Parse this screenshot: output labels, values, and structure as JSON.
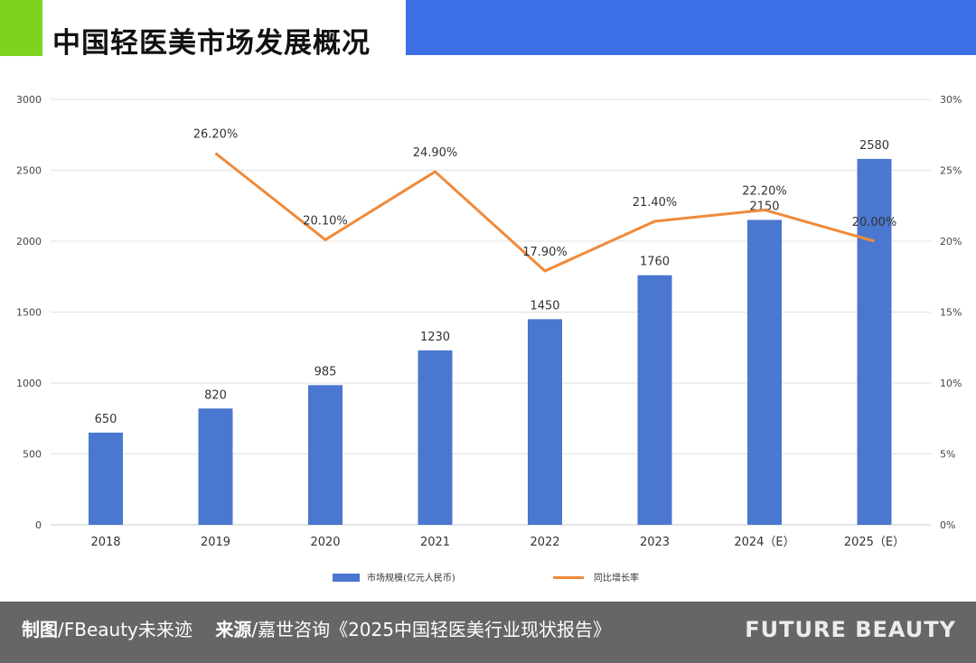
{
  "header": {
    "title": "中国轻医美市场发展概况"
  },
  "chart_data": {
    "type": "bar",
    "categories": [
      "2018",
      "2019",
      "2020",
      "2021",
      "2022",
      "2023",
      "2024（E）",
      "2025（E）"
    ],
    "series": [
      {
        "name": "市场规模(亿元人民币)",
        "type": "bar",
        "axis": "left",
        "color": "#4a77cf",
        "values": [
          650,
          820,
          985,
          1230,
          1450,
          1760,
          2150,
          2580
        ],
        "labels": [
          "650",
          "820",
          "985",
          "1230",
          "1450",
          "1760",
          "2150",
          "2580"
        ]
      },
      {
        "name": "同比增长率",
        "type": "line",
        "axis": "right",
        "color": "#f08a3a",
        "values": [
          null,
          26.2,
          20.1,
          24.9,
          17.9,
          21.4,
          22.2,
          20.0
        ],
        "labels": [
          "",
          "26.20%",
          "20.10%",
          "24.90%",
          "17.90%",
          "21.40%",
          "22.20%",
          "20.00%"
        ]
      }
    ],
    "y_left": {
      "lim": [
        0,
        3000
      ],
      "ticks": [
        "0",
        "500",
        "1000",
        "1500",
        "2000",
        "2500",
        "3000"
      ]
    },
    "y_right": {
      "lim": [
        0,
        30
      ],
      "ticks": [
        "0%",
        "5%",
        "10%",
        "15%",
        "20%",
        "25%",
        "30%"
      ]
    },
    "grid": true,
    "legend": "bottom"
  },
  "footer": {
    "credit_label": "制图",
    "credit_value": "/FBeauty未来迹",
    "source_label": "来源",
    "source_value": "/嘉世咨询《2025中国轻医美行业现状报告》",
    "brand": "FUTURE BEAUTY"
  }
}
